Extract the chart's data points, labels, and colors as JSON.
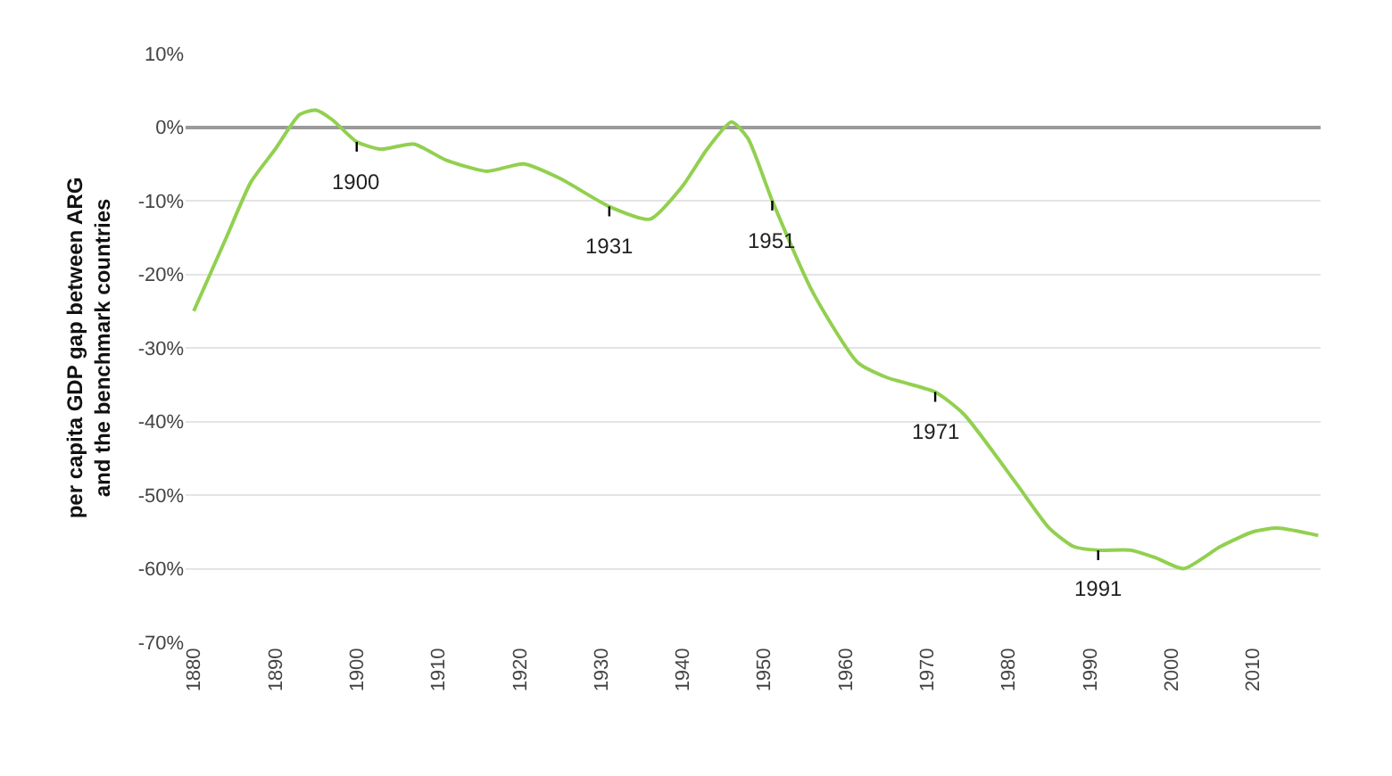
{
  "chart_data": {
    "type": "line",
    "ylabel": "per capita GDP gap between ARG and the benchmark countries",
    "x": [
      1880,
      1884,
      1887,
      1890,
      1893,
      1895,
      1897,
      1900,
      1903,
      1907,
      1911,
      1916,
      1920.5,
      1925,
      1931,
      1936,
      1940,
      1943,
      1946,
      1948,
      1951,
      1956,
      1961.5,
      1965,
      1971,
      1974.5,
      1981,
      1985,
      1988,
      1991,
      1995,
      1998,
      2001.5,
      2006,
      2010,
      2013,
      2018
    ],
    "series": [
      {
        "color": "#92d050",
        "values": [
          -25,
          -15,
          -7.5,
          -3,
          1.7,
          2.3,
          1,
          -2,
          -3,
          -2.3,
          -4.5,
          -6,
          -5,
          -7,
          -10.8,
          -12.5,
          -8,
          -3,
          0.7,
          -1.5,
          -10,
          -22.5,
          -32,
          -34,
          -36,
          -39,
          -48.5,
          -54.5,
          -57,
          -57.5,
          -57.5,
          -58.5,
          -60,
          -57,
          -55,
          -54.5,
          -55.5
        ]
      }
    ],
    "xlim": [
      1879,
      2018.3
    ],
    "xticks": [
      1880,
      1890,
      1900,
      1910,
      1920,
      1930,
      1940,
      1950,
      1960,
      1970,
      1980,
      1990,
      2000,
      2010
    ],
    "ylim": [
      -70,
      10
    ],
    "yticks": [
      {
        "value": 10,
        "label": "10%"
      },
      {
        "value": 0,
        "label": "0%"
      },
      {
        "value": -10,
        "label": "-10%"
      },
      {
        "value": -20,
        "label": "-20%"
      },
      {
        "value": -30,
        "label": "-30%"
      },
      {
        "value": -40,
        "label": "-40%"
      },
      {
        "value": -50,
        "label": "-50%"
      },
      {
        "value": -60,
        "label": "-60%"
      },
      {
        "value": -70,
        "label": "-70%"
      }
    ],
    "grid": "y",
    "marker": "none",
    "line_style": "solid",
    "annotations": [
      {
        "text": "1900",
        "x": 1900,
        "y": -2
      },
      {
        "text": "1931",
        "x": 1931,
        "y": -10.8
      },
      {
        "text": "1951",
        "x": 1951,
        "y": -10
      },
      {
        "text": "1971",
        "x": 1971,
        "y": -36
      },
      {
        "text": "1991",
        "x": 1991,
        "y": -57.5
      }
    ]
  }
}
